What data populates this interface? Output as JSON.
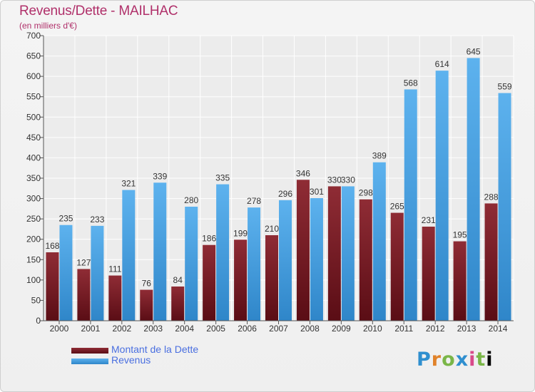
{
  "chart_data": {
    "type": "bar",
    "title": "Revenus/Dette - MAILHAC",
    "subtitle": "(en milliers d'€)",
    "categories": [
      "2000",
      "2001",
      "2002",
      "2003",
      "2004",
      "2005",
      "2006",
      "2007",
      "2008",
      "2009",
      "2010",
      "2011",
      "2012",
      "2013",
      "2014"
    ],
    "series": [
      {
        "name": "Montant de la Dette",
        "values": [
          168,
          127,
          111,
          76,
          84,
          186,
          199,
          210,
          346,
          330,
          298,
          265,
          231,
          195,
          288
        ],
        "color": "#7a1f28"
      },
      {
        "name": "Revenus",
        "values": [
          235,
          233,
          321,
          339,
          280,
          335,
          278,
          296,
          301,
          330,
          389,
          568,
          614,
          645,
          559
        ],
        "color": "#4aa3e0"
      }
    ],
    "ylim": [
      0,
      700
    ],
    "yticks": [
      0,
      50,
      100,
      150,
      200,
      250,
      300,
      350,
      400,
      450,
      500,
      550,
      600,
      650,
      700
    ],
    "grid": true,
    "legend_position": "bottom-left"
  },
  "logo": {
    "letters": [
      "P",
      "r",
      "o",
      "x",
      "i",
      "t",
      "i"
    ]
  }
}
